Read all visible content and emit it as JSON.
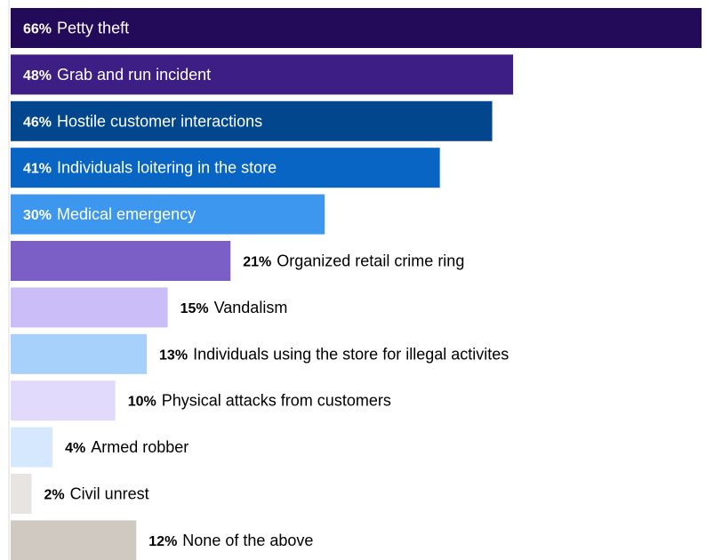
{
  "chart_data": {
    "type": "bar",
    "orientation": "horizontal",
    "categories": [
      "Petty theft",
      "Grab and run incident",
      "Hostile customer interactions",
      "Individuals loitering in the store",
      "Medical emergency",
      "Organized retail crime ring",
      "Vandalism",
      "Individuals using the store for illegal activites",
      "Physical attacks from customers",
      "Armed robber",
      "Civil unrest",
      "None of the above"
    ],
    "values": [
      66,
      48,
      46,
      41,
      30,
      21,
      15,
      13,
      10,
      4,
      2,
      12
    ],
    "value_labels": [
      "66%",
      "48%",
      "46%",
      "41%",
      "30%",
      "21%",
      "15%",
      "13%",
      "10%",
      "4%",
      "2%",
      "12%"
    ],
    "colors": [
      "#240b5a",
      "#3c1e85",
      "#02478d",
      "#0865c4",
      "#3d97ee",
      "#7c5fc6",
      "#cbbdf8",
      "#a7d0fb",
      "#e2dafd",
      "#d5e8fd",
      "#e8e4e1",
      "#cfc9c2"
    ],
    "label_text_colors": [
      "#ffffff",
      "#ffffff",
      "#ffffff",
      "#ffffff",
      "#ffffff",
      "#000000",
      "#000000",
      "#000000",
      "#000000",
      "#000000",
      "#000000",
      "#000000"
    ],
    "label_position": [
      "inside",
      "inside",
      "inside",
      "inside",
      "inside",
      "outside",
      "outside",
      "outside",
      "outside",
      "outside",
      "outside",
      "outside"
    ],
    "xlim": [
      0,
      66
    ],
    "title": "",
    "xlabel": "",
    "ylabel": "",
    "grid": false,
    "legend": "none"
  }
}
